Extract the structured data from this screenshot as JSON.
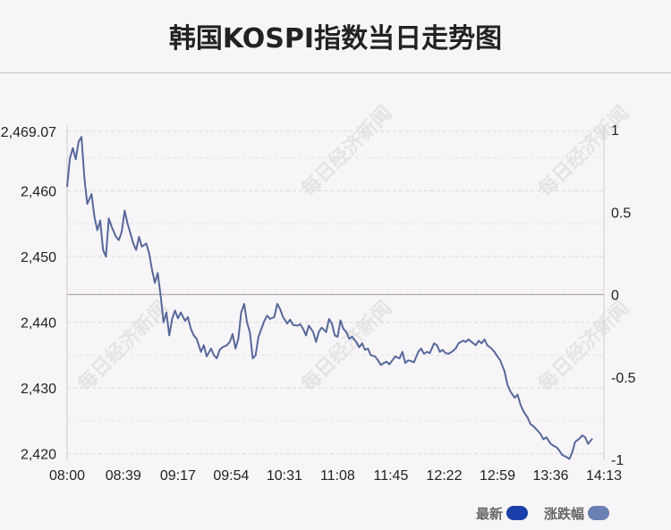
{
  "title": "韩国KOSPI指数当日走势图",
  "watermark": "每日经济新闻",
  "legend": [
    {
      "label": "最新",
      "color": "#1b3fa8"
    },
    {
      "label": "涨跌幅",
      "color": "#6a7fb2"
    }
  ],
  "chart_data": {
    "type": "line",
    "title": "韩国KOSPI指数当日走势图",
    "x_ticks": [
      "08:00",
      "08:39",
      "09:17",
      "09:54",
      "10:31",
      "11:08",
      "11:45",
      "12:22",
      "12:59",
      "13:36",
      "14:13"
    ],
    "y_left_ticks": [
      "2,469.07",
      "2,460",
      "2,450",
      "2,440",
      "2,430",
      "2,420"
    ],
    "y_left_values": [
      2469.07,
      2460,
      2450,
      2440,
      2430,
      2420
    ],
    "y_right_ticks": [
      "1",
      "0.5",
      "0",
      "-0.5",
      "-1"
    ],
    "y_right_values": [
      1,
      0.5,
      0,
      -0.5,
      -1
    ],
    "ylim_left": [
      2419,
      2470
    ],
    "ylim_right": [
      -1.005,
      1.027
    ],
    "grid": true,
    "legend_position": "bottom-right",
    "series": [
      {
        "name": "最新",
        "color": "#56689a",
        "points": [
          [
            "08:00",
            2460.6
          ],
          [
            "08:02",
            2465
          ],
          [
            "08:04",
            2466.5
          ],
          [
            "08:06",
            2464.8
          ],
          [
            "08:08",
            2467.5
          ],
          [
            "08:10",
            2468.2
          ],
          [
            "08:12",
            2462
          ],
          [
            "08:14",
            2458
          ],
          [
            "08:17",
            2459.5
          ],
          [
            "08:19",
            2456
          ],
          [
            "08:21",
            2454
          ],
          [
            "08:23",
            2455.5
          ],
          [
            "08:25",
            2451
          ],
          [
            "08:27",
            2450
          ],
          [
            "08:29",
            2455.8
          ],
          [
            "08:31",
            2454.5
          ],
          [
            "08:34",
            2453
          ],
          [
            "08:36",
            2452.5
          ],
          [
            "08:38",
            2453.8
          ],
          [
            "08:40",
            2457
          ],
          [
            "08:42",
            2455
          ],
          [
            "08:44",
            2453.5
          ],
          [
            "08:46",
            2452
          ],
          [
            "08:48",
            2451
          ],
          [
            "08:50",
            2453
          ],
          [
            "08:52",
            2451.5
          ],
          [
            "08:55",
            2452
          ],
          [
            "08:57",
            2450.5
          ],
          [
            "08:59",
            2448
          ],
          [
            "09:01",
            2446
          ],
          [
            "09:03",
            2447.5
          ],
          [
            "09:05",
            2444
          ],
          [
            "09:07",
            2440
          ],
          [
            "09:09",
            2441.5
          ],
          [
            "09:11",
            2438
          ],
          [
            "09:13",
            2440.5
          ],
          [
            "09:15",
            2441.8
          ],
          [
            "09:17",
            2440.6
          ],
          [
            "09:19",
            2441.5
          ],
          [
            "09:22",
            2440.2
          ],
          [
            "09:24",
            2440.8
          ],
          [
            "09:26",
            2439
          ],
          [
            "09:28",
            2438
          ],
          [
            "09:30",
            2437.5
          ],
          [
            "09:33",
            2435.5
          ],
          [
            "09:35",
            2436.5
          ],
          [
            "09:37",
            2434.8
          ],
          [
            "09:40",
            2436
          ],
          [
            "09:42",
            2435
          ],
          [
            "09:44",
            2434.5
          ],
          [
            "09:46",
            2435.8
          ],
          [
            "09:48",
            2436.2
          ],
          [
            "09:51",
            2436.5
          ],
          [
            "09:53",
            2437
          ],
          [
            "09:55",
            2438.2
          ],
          [
            "09:57",
            2436
          ],
          [
            "09:59",
            2437.5
          ],
          [
            "10:01",
            2441.5
          ],
          [
            "10:03",
            2442.8
          ],
          [
            "10:05",
            2440
          ],
          [
            "10:07",
            2438.5
          ],
          [
            "10:09",
            2434.5
          ],
          [
            "10:11",
            2435
          ],
          [
            "10:13",
            2437.8
          ],
          [
            "10:15",
            2439
          ],
          [
            "10:17",
            2440.2
          ],
          [
            "10:19",
            2441
          ],
          [
            "10:21",
            2440.5
          ],
          [
            "10:24",
            2440.8
          ],
          [
            "10:26",
            2442.8
          ],
          [
            "10:28",
            2442
          ],
          [
            "10:30",
            2440.8
          ],
          [
            "10:33",
            2439.8
          ],
          [
            "10:35",
            2440.4
          ],
          [
            "10:37",
            2439.6
          ],
          [
            "10:40",
            2439.5
          ],
          [
            "10:42",
            2439.7
          ],
          [
            "10:44",
            2439
          ],
          [
            "10:46",
            2438
          ],
          [
            "10:48",
            2439.5
          ],
          [
            "10:51",
            2438.5
          ],
          [
            "10:53",
            2437
          ],
          [
            "10:55",
            2438.6
          ],
          [
            "10:57",
            2439.2
          ],
          [
            "11:00",
            2438.5
          ],
          [
            "11:02",
            2440.5
          ],
          [
            "11:04",
            2439.8
          ],
          [
            "11:06",
            2438
          ],
          [
            "11:08",
            2437.8
          ],
          [
            "11:10",
            2440.3
          ],
          [
            "11:12",
            2439
          ],
          [
            "11:14",
            2438.5
          ],
          [
            "11:16",
            2437.5
          ],
          [
            "11:18",
            2437.8
          ],
          [
            "11:21",
            2437
          ],
          [
            "11:23",
            2436.2
          ],
          [
            "11:25",
            2436.8
          ],
          [
            "11:27",
            2435.8
          ],
          [
            "11:29",
            2436
          ],
          [
            "11:31",
            2435
          ],
          [
            "11:34",
            2434.8
          ],
          [
            "11:36",
            2434.2
          ],
          [
            "11:38",
            2433.5
          ],
          [
            "11:40",
            2433.8
          ],
          [
            "11:42",
            2434
          ],
          [
            "11:44",
            2433.6
          ],
          [
            "11:46",
            2434.2
          ],
          [
            "11:48",
            2434.8
          ],
          [
            "11:51",
            2434.5
          ],
          [
            "11:53",
            2435.5
          ],
          [
            "11:55",
            2433.8
          ],
          [
            "11:57",
            2434.2
          ],
          [
            "11:59",
            2434.1
          ],
          [
            "12:01",
            2433.9
          ],
          [
            "12:04",
            2435.5
          ],
          [
            "12:06",
            2436
          ],
          [
            "12:08",
            2435.2
          ],
          [
            "12:10",
            2435.5
          ],
          [
            "12:12",
            2435.3
          ],
          [
            "12:15",
            2436.8
          ],
          [
            "12:17",
            2436.5
          ],
          [
            "12:19",
            2435.5
          ],
          [
            "12:21",
            2435.8
          ],
          [
            "12:23",
            2435.3
          ],
          [
            "12:25",
            2435.2
          ],
          [
            "12:28",
            2435.6
          ],
          [
            "12:30",
            2436
          ],
          [
            "12:32",
            2436.8
          ],
          [
            "12:35",
            2437.2
          ],
          [
            "12:37",
            2437
          ],
          [
            "12:39",
            2437.4
          ],
          [
            "12:41",
            2437
          ],
          [
            "12:44",
            2436.5
          ],
          [
            "12:46",
            2437.2
          ],
          [
            "12:48",
            2436.8
          ],
          [
            "12:50",
            2437.4
          ],
          [
            "12:52",
            2436.5
          ],
          [
            "12:55",
            2436
          ],
          [
            "12:57",
            2435.5
          ],
          [
            "12:59",
            2434.8
          ],
          [
            "13:01",
            2434.2
          ],
          [
            "13:04",
            2432.5
          ],
          [
            "13:06",
            2430.5
          ],
          [
            "13:08",
            2429.5
          ],
          [
            "13:11",
            2428.5
          ],
          [
            "13:13",
            2429
          ],
          [
            "13:15",
            2427.5
          ],
          [
            "13:17",
            2426.5
          ],
          [
            "13:20",
            2425.5
          ],
          [
            "13:22",
            2424.5
          ],
          [
            "13:24",
            2424.2
          ],
          [
            "13:27",
            2423.5
          ],
          [
            "13:29",
            2423
          ],
          [
            "13:31",
            2422.2
          ],
          [
            "13:33",
            2422.5
          ],
          [
            "13:36",
            2421.5
          ],
          [
            "13:38",
            2421.2
          ],
          [
            "13:40",
            2421
          ],
          [
            "13:42",
            2420.5
          ],
          [
            "13:44",
            2419.8
          ],
          [
            "13:47",
            2419.5
          ],
          [
            "13:49",
            2419.2
          ],
          [
            "13:51",
            2420.2
          ],
          [
            "13:53",
            2421.8
          ],
          [
            "13:56",
            2422.3
          ],
          [
            "13:58",
            2422.8
          ],
          [
            "14:00",
            2422.5
          ],
          [
            "14:02",
            2421.5
          ],
          [
            "14:05",
            2422.3
          ]
        ]
      }
    ]
  }
}
